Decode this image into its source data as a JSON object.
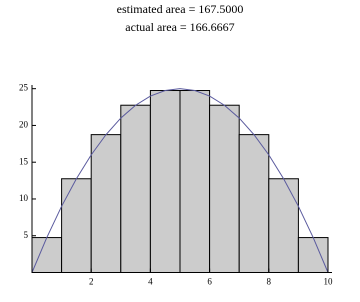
{
  "chart_data": {
    "type": "histogram",
    "title": "estimated area = 167.5000",
    "subtitle": "actual area = 166.6667",
    "bins": [
      0,
      1,
      2,
      3,
      4,
      5,
      6,
      7,
      8,
      9,
      10
    ],
    "values": [
      4.75,
      12.75,
      18.75,
      22.75,
      24.75,
      24.75,
      22.75,
      18.75,
      12.75,
      4.75
    ],
    "color": "#cccccc",
    "curve": {
      "color": "#5a5a9e",
      "x": [
        0,
        0.5,
        1,
        1.5,
        2,
        2.5,
        3,
        3.5,
        4,
        4.5,
        5,
        5.5,
        6,
        6.5,
        7,
        7.5,
        8,
        8.5,
        9,
        9.5,
        10
      ],
      "values": [
        0,
        4.75,
        9,
        12.75,
        16,
        18.75,
        21,
        22.75,
        24,
        24.75,
        25,
        24.75,
        24,
        22.75,
        21,
        18.75,
        16,
        12.75,
        9,
        4.75,
        0
      ]
    },
    "xlim": [
      0,
      10
    ],
    "xticks": [
      2,
      4,
      6,
      8,
      10
    ],
    "ylim": [
      0,
      25.5
    ],
    "yticks": [
      5,
      10,
      15,
      20,
      25
    ]
  }
}
